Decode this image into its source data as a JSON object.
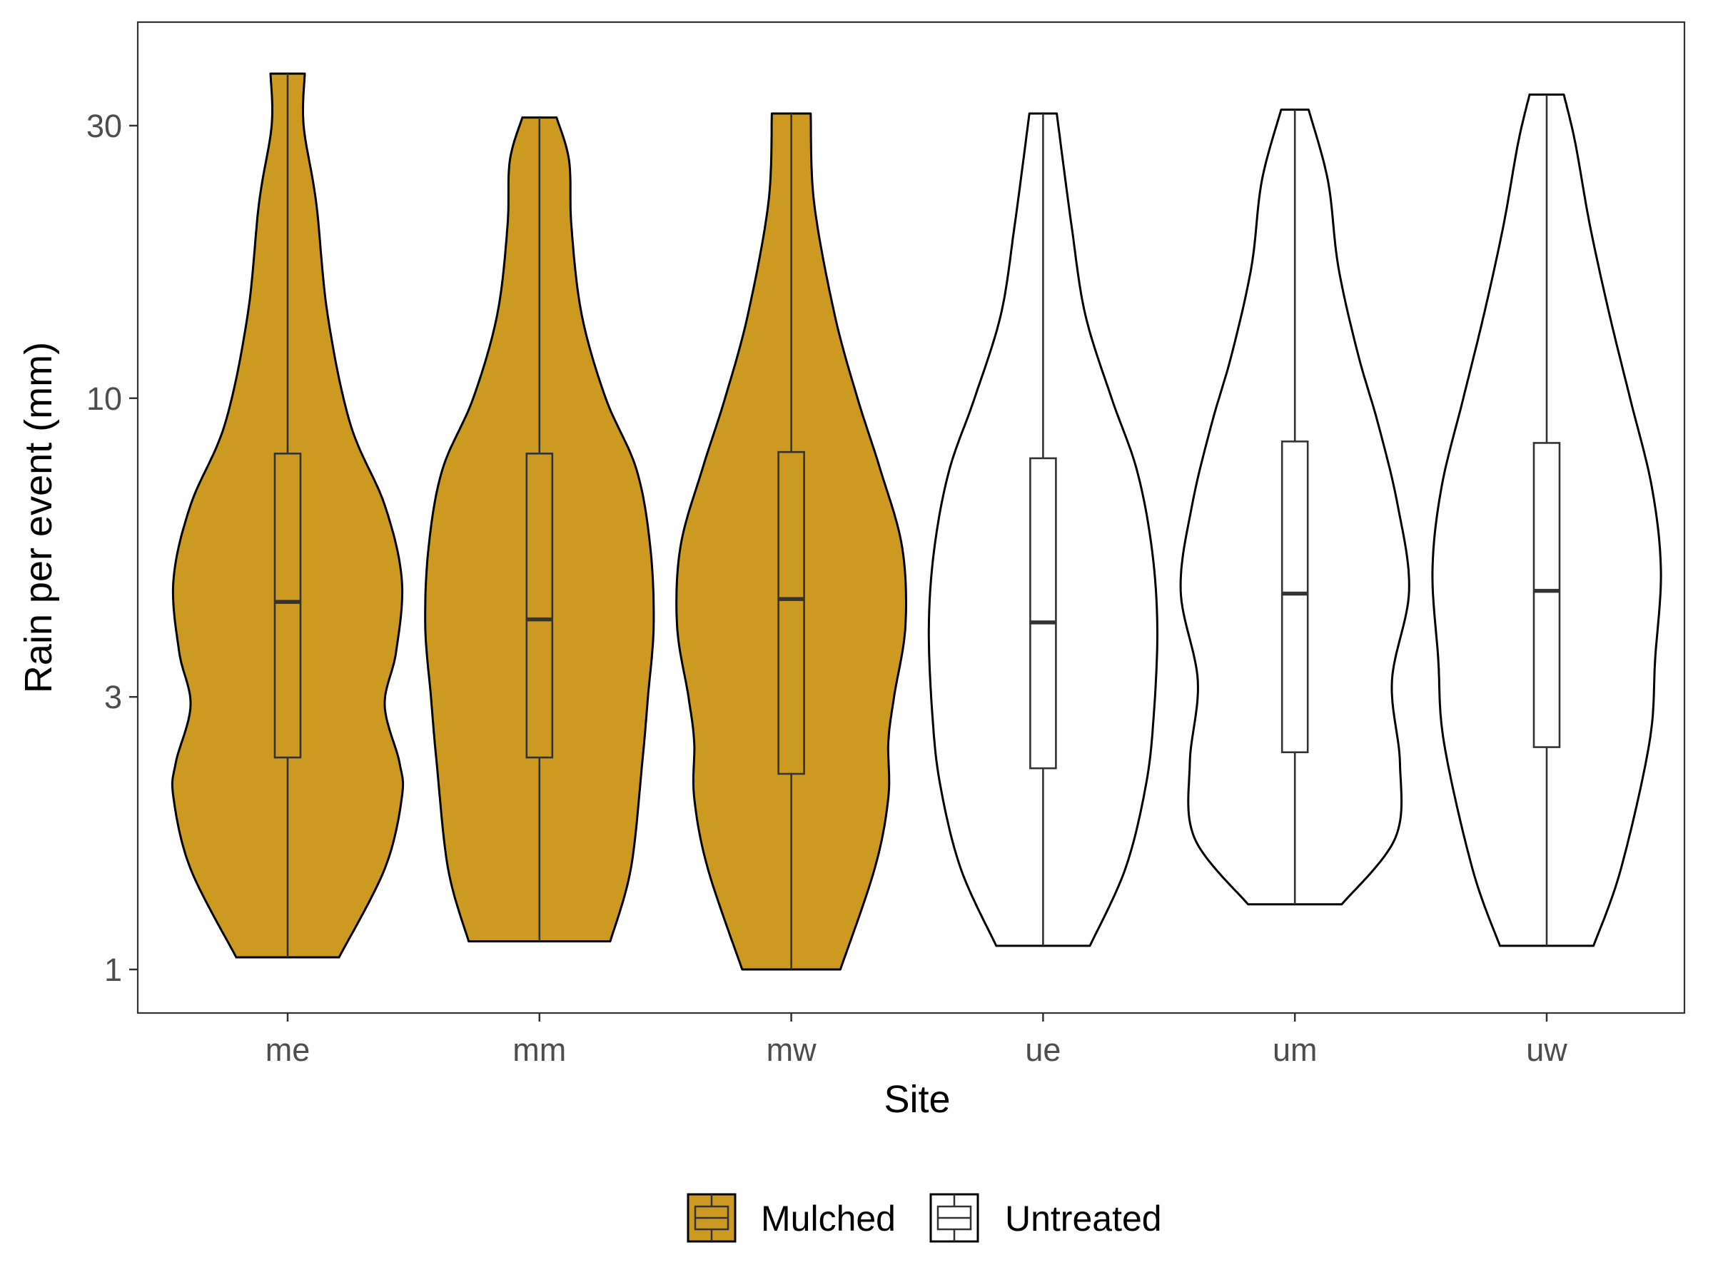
{
  "chart_data": {
    "type": "violin",
    "xlabel": "Site",
    "ylabel": "Rain per event (mm)",
    "y_scale": "log10",
    "ylim": [
      0.9,
      42
    ],
    "y_ticks": [
      {
        "value": 1,
        "label": "1"
      },
      {
        "value": 3,
        "label": "3"
      },
      {
        "value": 10,
        "label": "10"
      },
      {
        "value": 30,
        "label": "30"
      }
    ],
    "grid": false,
    "legend_position": "bottom",
    "legend": [
      {
        "name": "Mulched",
        "fill": "#CC9A20"
      },
      {
        "name": "Untreated",
        "fill": "#FFFFFF"
      }
    ],
    "categories": [
      "me",
      "mm",
      "mw",
      "ue",
      "um",
      "uw"
    ],
    "series": [
      {
        "site": "me",
        "group": "Mulched",
        "min": 1.05,
        "max": 37.0,
        "q1": 2.35,
        "median": 4.4,
        "q3": 8.0,
        "density": [
          [
            1.05,
            0.45
          ],
          [
            1.5,
            0.85
          ],
          [
            2.0,
            1.0
          ],
          [
            2.3,
            0.98
          ],
          [
            2.9,
            0.85
          ],
          [
            3.6,
            0.95
          ],
          [
            4.8,
            1.0
          ],
          [
            6.5,
            0.85
          ],
          [
            9.0,
            0.55
          ],
          [
            14.0,
            0.35
          ],
          [
            22.0,
            0.25
          ],
          [
            30.0,
            0.14
          ],
          [
            37.0,
            0.15
          ]
        ]
      },
      {
        "site": "mm",
        "group": "Mulched",
        "min": 1.12,
        "max": 31.0,
        "q1": 2.35,
        "median": 4.1,
        "q3": 8.0,
        "density": [
          [
            1.12,
            0.62
          ],
          [
            1.5,
            0.8
          ],
          [
            2.3,
            0.9
          ],
          [
            3.0,
            0.95
          ],
          [
            4.0,
            1.0
          ],
          [
            5.5,
            0.97
          ],
          [
            7.5,
            0.85
          ],
          [
            10.0,
            0.58
          ],
          [
            14.0,
            0.37
          ],
          [
            20.0,
            0.28
          ],
          [
            26.0,
            0.26
          ],
          [
            31.0,
            0.15
          ]
        ]
      },
      {
        "site": "mw",
        "group": "Mulched",
        "min": 1.0,
        "max": 31.5,
        "q1": 2.2,
        "median": 4.45,
        "q3": 8.05,
        "density": [
          [
            1.0,
            0.43
          ],
          [
            1.5,
            0.73
          ],
          [
            2.0,
            0.85
          ],
          [
            2.5,
            0.85
          ],
          [
            3.0,
            0.9
          ],
          [
            4.0,
            1.0
          ],
          [
            5.5,
            0.97
          ],
          [
            7.5,
            0.78
          ],
          [
            10.0,
            0.58
          ],
          [
            14.0,
            0.38
          ],
          [
            22.0,
            0.2
          ],
          [
            31.5,
            0.17
          ]
        ]
      },
      {
        "site": "ue",
        "group": "Untreated",
        "min": 1.1,
        "max": 31.5,
        "q1": 2.25,
        "median": 4.05,
        "q3": 7.85,
        "density": [
          [
            1.1,
            0.41
          ],
          [
            1.5,
            0.72
          ],
          [
            2.1,
            0.9
          ],
          [
            2.8,
            0.97
          ],
          [
            4.0,
            1.0
          ],
          [
            5.5,
            0.95
          ],
          [
            7.5,
            0.82
          ],
          [
            10.0,
            0.6
          ],
          [
            14.0,
            0.37
          ],
          [
            20.0,
            0.25
          ],
          [
            31.5,
            0.12
          ]
        ]
      },
      {
        "site": "um",
        "group": "Untreated",
        "min": 1.3,
        "max": 32.0,
        "q1": 2.4,
        "median": 4.55,
        "q3": 8.4,
        "density": [
          [
            1.3,
            0.41
          ],
          [
            1.7,
            0.88
          ],
          [
            2.3,
            0.92
          ],
          [
            3.2,
            0.85
          ],
          [
            4.6,
            1.0
          ],
          [
            6.5,
            0.9
          ],
          [
            9.0,
            0.73
          ],
          [
            12.0,
            0.55
          ],
          [
            17.0,
            0.38
          ],
          [
            24.0,
            0.29
          ],
          [
            32.0,
            0.12
          ]
        ]
      },
      {
        "site": "uw",
        "group": "Untreated",
        "min": 1.1,
        "max": 34.0,
        "q1": 2.45,
        "median": 4.6,
        "q3": 8.35,
        "density": [
          [
            1.1,
            0.41
          ],
          [
            1.5,
            0.65
          ],
          [
            2.5,
            0.9
          ],
          [
            3.5,
            0.95
          ],
          [
            5.0,
            1.0
          ],
          [
            7.0,
            0.92
          ],
          [
            10.0,
            0.73
          ],
          [
            14.0,
            0.55
          ],
          [
            20.0,
            0.38
          ],
          [
            28.0,
            0.25
          ],
          [
            34.0,
            0.15
          ]
        ]
      }
    ]
  }
}
